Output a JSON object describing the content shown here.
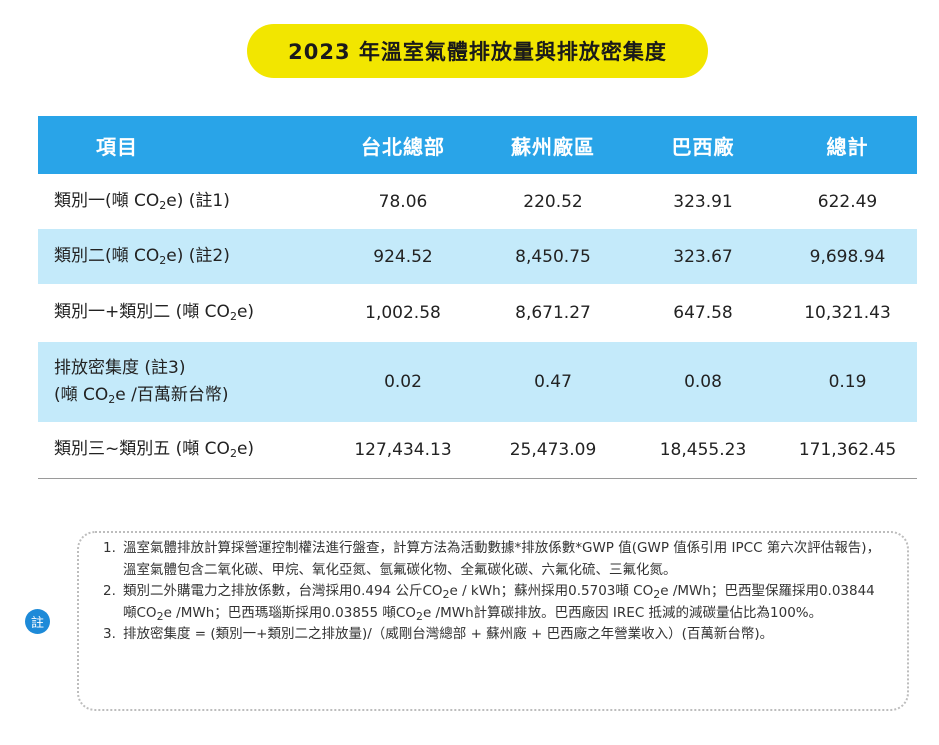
{
  "title": "2023 年溫室氣體排放量與排放密集度",
  "table": {
    "headers": [
      "項目",
      "台北總部",
      "蘇州廠區",
      "巴西廠",
      "總計"
    ],
    "rows": [
      {
        "label_pre": "類別一(噸 CO",
        "label_sub": "2",
        "label_post": "e) (註1)",
        "values": [
          "78.06",
          "220.52",
          "323.91",
          "622.49"
        ]
      },
      {
        "label_pre": "類別二(噸 CO",
        "label_sub": "2",
        "label_post": "e) (註2)",
        "values": [
          "924.52",
          "8,450.75",
          "323.67",
          "9,698.94"
        ]
      },
      {
        "label_pre": "類別一+類別二 (噸 CO",
        "label_sub": "2",
        "label_post": "e)",
        "values": [
          "1,002.58",
          "8,671.27",
          "647.58",
          "10,321.43"
        ]
      },
      {
        "label_line1": "排放密集度 (註3)",
        "label_pre": "(噸 CO",
        "label_sub": "2",
        "label_post": "e /百萬新台幣)",
        "values": [
          "0.02",
          "0.47",
          "0.08",
          "0.19"
        ]
      },
      {
        "label_pre": "類別三~類別五 (噸 CO",
        "label_sub": "2",
        "label_post": "e)",
        "values": [
          "127,434.13",
          "25,473.09",
          "18,455.23",
          "171,362.45"
        ]
      }
    ]
  },
  "notes": {
    "badge": "註",
    "items": [
      {
        "num": "1.",
        "text": "溫室氣體排放計算採營運控制權法進行盤查，計算方法為活動數據*排放係數*GWP 值(GWP 值係引用 IPCC 第六次評估報告)，溫室氣體包含二氧化碳、甲烷、氧化亞氮、氫氟碳化物、全氟碳化碳、六氟化硫、三氟化氮。"
      },
      {
        "num": "2.",
        "t1": "類別二外購電力之排放係數，台灣採用0.494 公斤CO",
        "s1": "2",
        "t2": "e / kWh；蘇州採用0.5703噸 CO",
        "s2": "2",
        "t3": "e /MWh；巴西聖保羅採用0.03844 噸CO",
        "s3": "2",
        "t4": "e /MWh；巴西瑪瑙斯採用0.03855 噸CO",
        "s4": "2",
        "t5": "e /MWh計算碳排放。巴西廠因 IREC 抵減的減碳量佔比為100%。"
      },
      {
        "num": "3.",
        "text": "排放密集度 = (類別一+類別二之排放量)/（威剛台灣總部 + 蘇州廠 + 巴西廠之年營業收入）(百萬新台幣)。"
      }
    ]
  }
}
